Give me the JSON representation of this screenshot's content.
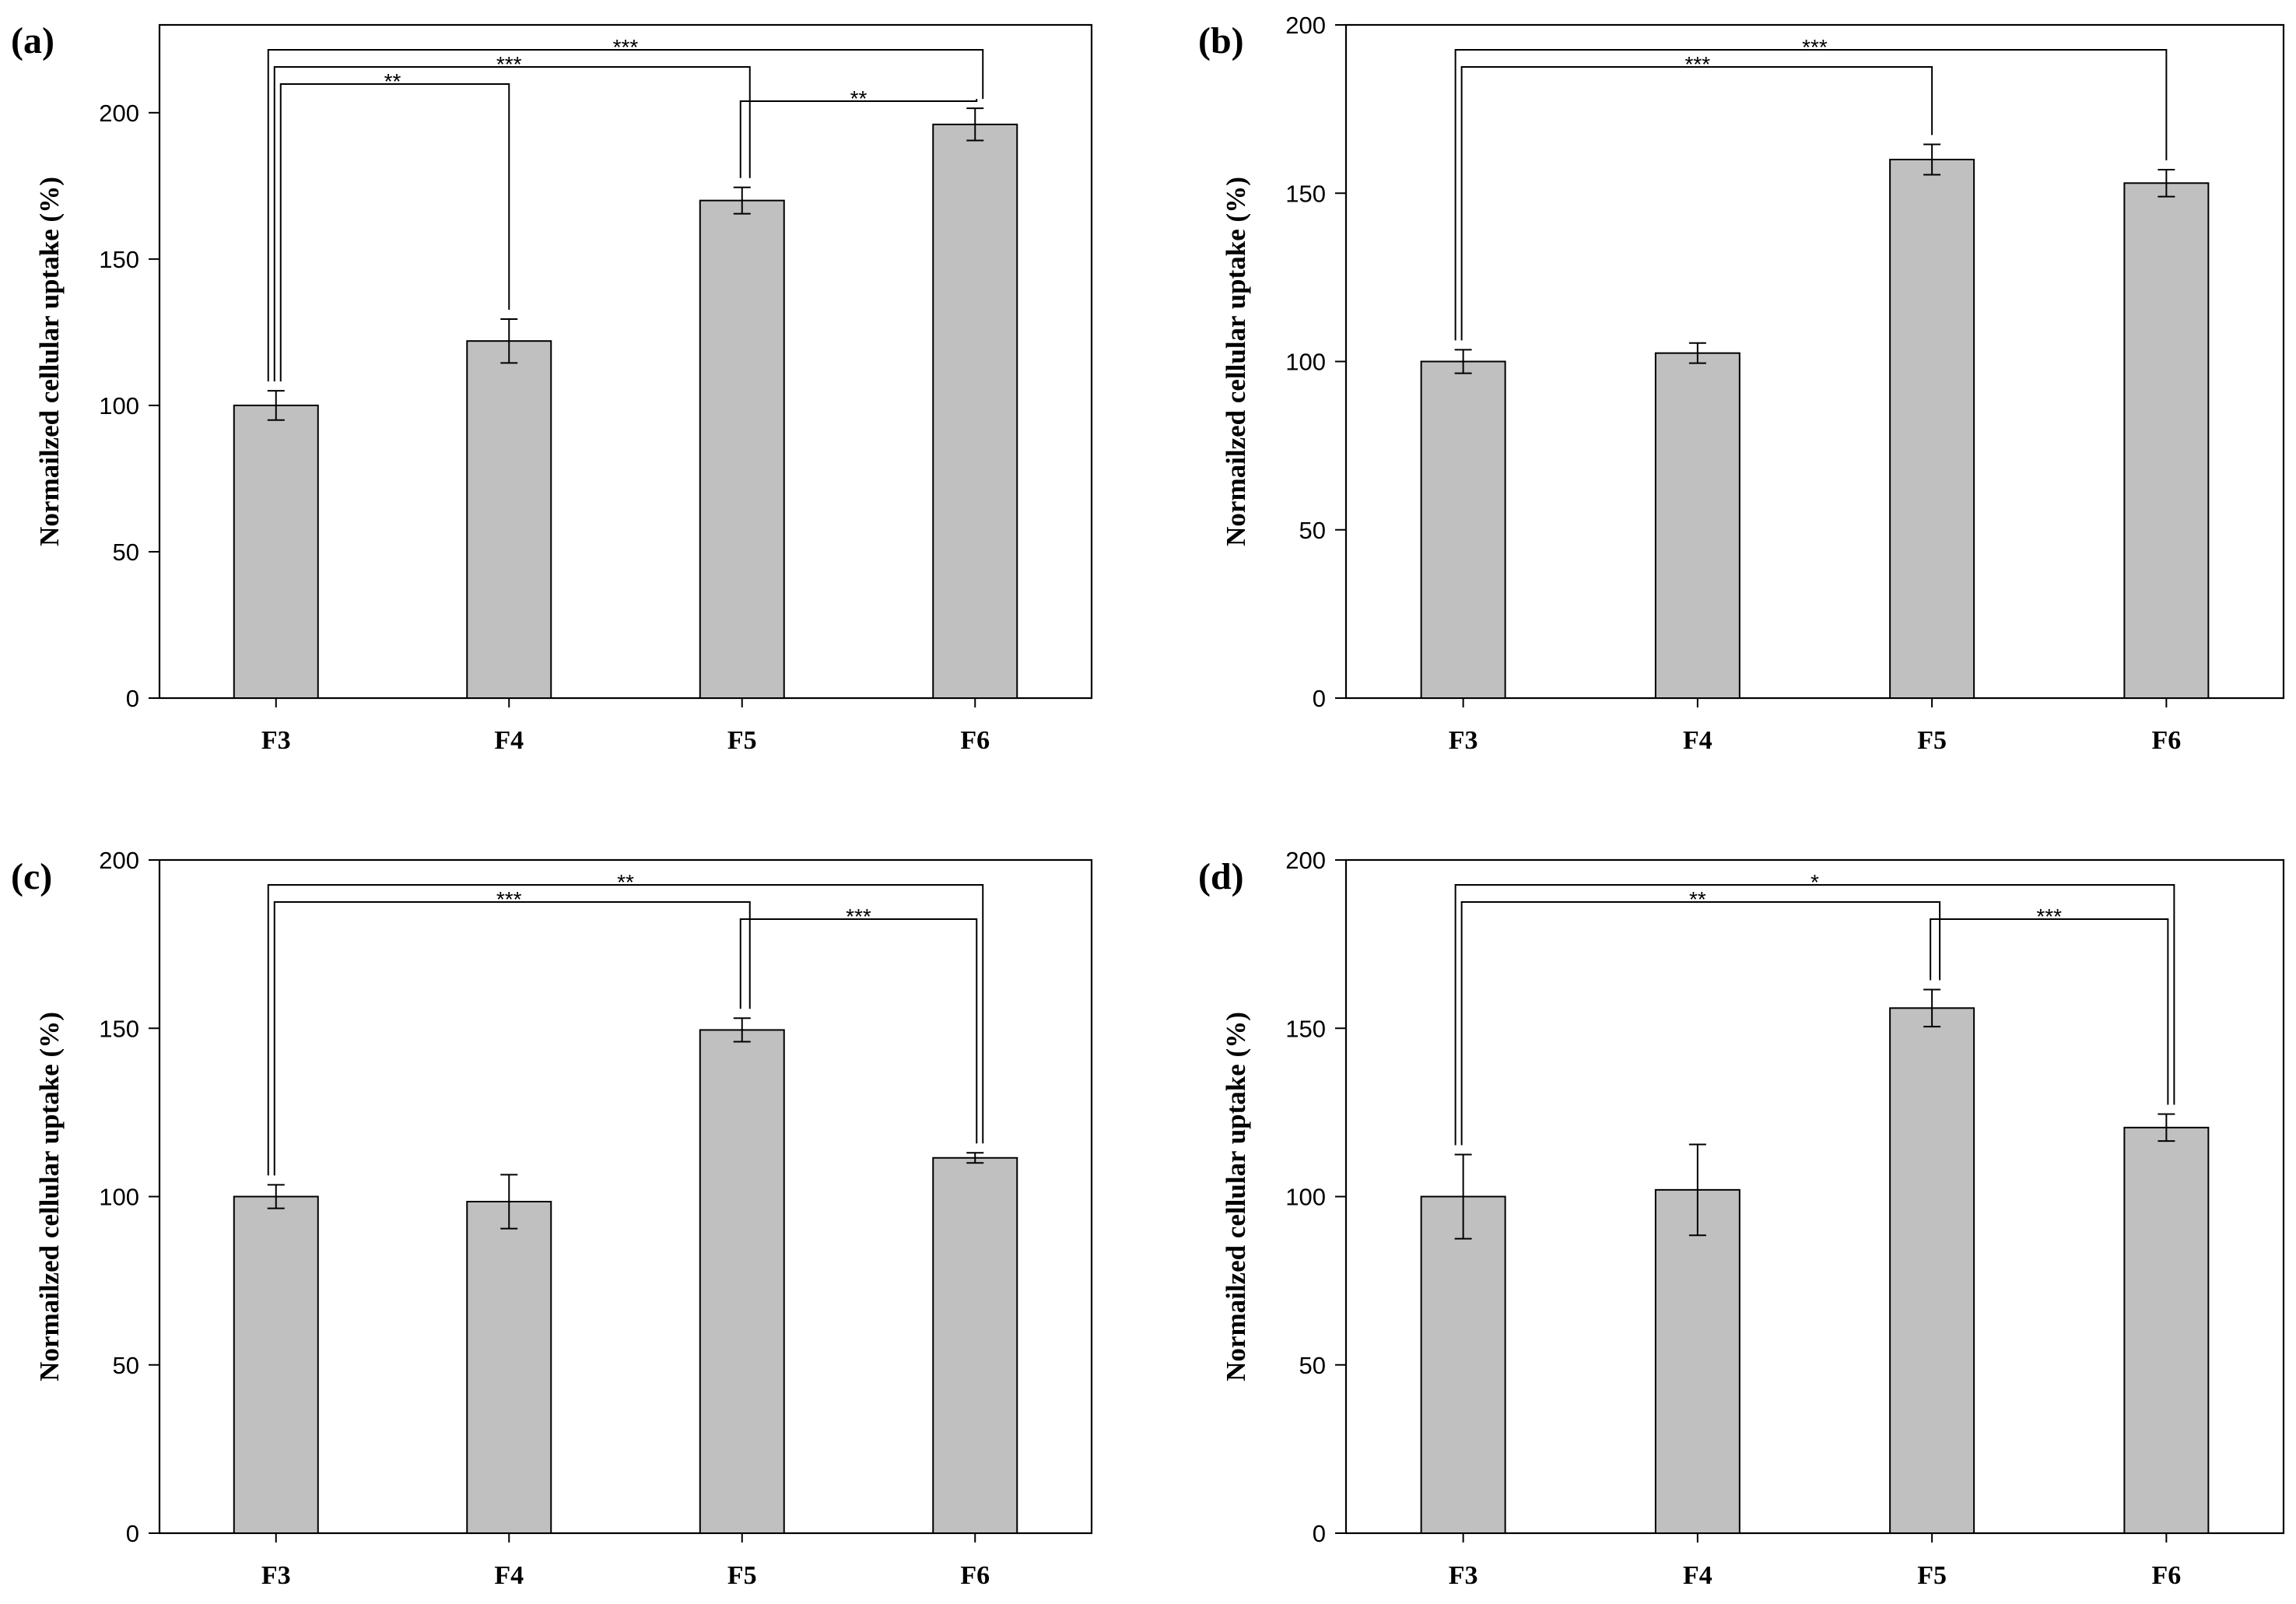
{
  "figure": {
    "colors": {
      "bar_fill": "#c0c0c0",
      "line": "#000000"
    }
  },
  "chart_data": [
    {
      "type": "bar",
      "panel_label": "(a)",
      "categories": [
        "F3",
        "F4",
        "F5",
        "F6"
      ],
      "values": [
        100,
        122,
        170,
        196
      ],
      "errors": [
        5,
        7.5,
        4.5,
        5.5
      ],
      "ylabel": "Normailzed cellular uptake  (%)",
      "ylim": [
        0,
        230
      ],
      "yticks": [
        0,
        50,
        100,
        150,
        200
      ],
      "significance": [
        {
          "from": "F3",
          "to": "F6",
          "label": "***"
        },
        {
          "from": "F3",
          "to": "F5",
          "label": "***"
        },
        {
          "from": "F3",
          "to": "F4",
          "label": "**"
        },
        {
          "from": "F5",
          "to": "F6",
          "label": "**"
        }
      ]
    },
    {
      "type": "bar",
      "panel_label": "(b)",
      "categories": [
        "F3",
        "F4",
        "F5",
        "F6"
      ],
      "values": [
        100,
        102.5,
        160,
        153
      ],
      "errors": [
        3.5,
        3,
        4.5,
        4
      ],
      "ylabel": "Normailzed cellular uptake  (%)",
      "ylim": [
        0,
        200
      ],
      "yticks": [
        0,
        50,
        100,
        150,
        200
      ],
      "significance": [
        {
          "from": "F3",
          "to": "F6",
          "label": "***"
        },
        {
          "from": "F3",
          "to": "F5",
          "label": "***"
        }
      ]
    },
    {
      "type": "bar",
      "panel_label": "(c)",
      "categories": [
        "F3",
        "F4",
        "F5",
        "F6"
      ],
      "values": [
        100,
        98.5,
        149.5,
        111.5
      ],
      "errors": [
        3.5,
        8,
        3.5,
        1.5
      ],
      "ylabel": "Normailzed cellular uptake  (%)",
      "ylim": [
        0,
        200
      ],
      "yticks": [
        0,
        50,
        100,
        150,
        200
      ],
      "significance": [
        {
          "from": "F3",
          "to": "F6",
          "label": "**"
        },
        {
          "from": "F3",
          "to": "F5",
          "label": "***"
        },
        {
          "from": "F5",
          "to": "F6",
          "label": "***"
        }
      ]
    },
    {
      "type": "bar",
      "panel_label": "(d)",
      "categories": [
        "F3",
        "F4",
        "F5",
        "F6"
      ],
      "values": [
        100,
        102,
        156,
        120.5
      ],
      "errors": [
        12.5,
        13.5,
        5.5,
        4
      ],
      "ylabel": "Normailzed cellular uptake  (%)",
      "ylim": [
        0,
        200
      ],
      "yticks": [
        0,
        50,
        100,
        150,
        200
      ],
      "significance": [
        {
          "from": "F3",
          "to": "F6",
          "label": "*"
        },
        {
          "from": "F3",
          "to": "F5",
          "label": "**"
        },
        {
          "from": "F5",
          "to": "F6",
          "label": "***"
        }
      ]
    }
  ]
}
